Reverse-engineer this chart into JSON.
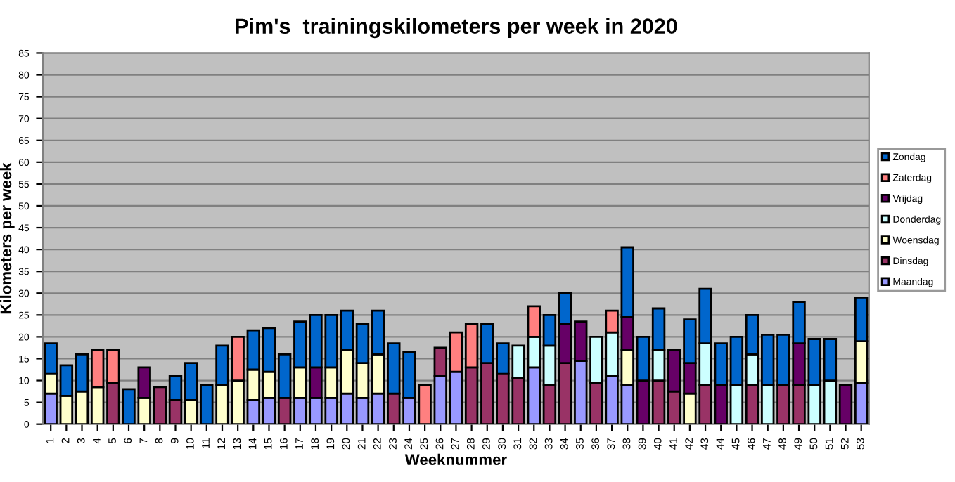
{
  "chart_data": {
    "type": "bar",
    "stacked": true,
    "title": "Pim's  trainingskilometers per week in 2020",
    "xlabel": "Weeknummer",
    "ylabel": "Kilometers per week",
    "categories": [
      "1",
      "2",
      "3",
      "4",
      "5",
      "6",
      "7",
      "8",
      "9",
      "10",
      "11",
      "12",
      "13",
      "14",
      "15",
      "16",
      "17",
      "18",
      "19",
      "20",
      "21",
      "22",
      "23",
      "24",
      "25",
      "26",
      "27",
      "28",
      "29",
      "30",
      "31",
      "32",
      "33",
      "34",
      "35",
      "36",
      "37",
      "38",
      "39",
      "40",
      "41",
      "42",
      "43",
      "44",
      "45",
      "46",
      "47",
      "48",
      "49",
      "50",
      "51",
      "52",
      "53"
    ],
    "series": [
      {
        "name": "Maandag",
        "color": "#9999ff",
        "values": [
          7,
          null,
          null,
          null,
          null,
          null,
          null,
          null,
          null,
          null,
          null,
          null,
          null,
          5.5,
          6,
          null,
          6,
          6,
          6,
          7,
          6,
          7,
          null,
          6,
          null,
          11,
          12,
          null,
          null,
          null,
          null,
          13,
          null,
          null,
          14.5,
          null,
          11,
          9,
          null,
          null,
          null,
          null,
          null,
          null,
          null,
          null,
          null,
          null,
          null,
          null,
          null,
          null,
          9.5
        ]
      },
      {
        "name": "Dinsdag",
        "color": "#993366",
        "values": [
          null,
          null,
          null,
          null,
          9.5,
          null,
          null,
          8.5,
          5.5,
          null,
          null,
          null,
          null,
          null,
          null,
          6,
          null,
          null,
          null,
          null,
          null,
          null,
          7,
          null,
          null,
          6.5,
          null,
          13,
          14,
          11.5,
          10.5,
          null,
          9,
          14,
          null,
          9.5,
          null,
          null,
          null,
          10,
          7.5,
          null,
          9,
          null,
          null,
          9,
          null,
          9,
          9,
          null,
          null,
          null,
          null
        ]
      },
      {
        "name": "Woensdag",
        "color": "#ffffcc",
        "values": [
          4.5,
          6.5,
          7.5,
          8.5,
          null,
          null,
          6,
          null,
          null,
          5.5,
          null,
          9,
          10,
          7,
          6,
          null,
          7,
          null,
          7,
          10,
          8,
          9,
          null,
          null,
          null,
          null,
          null,
          null,
          null,
          null,
          null,
          null,
          null,
          null,
          null,
          null,
          null,
          8,
          null,
          null,
          null,
          7,
          null,
          null,
          null,
          null,
          null,
          null,
          null,
          null,
          null,
          null,
          9.5
        ]
      },
      {
        "name": "Donderdag",
        "color": "#ccffff",
        "values": [
          null,
          null,
          null,
          null,
          null,
          null,
          null,
          null,
          null,
          null,
          null,
          null,
          null,
          null,
          null,
          null,
          null,
          null,
          null,
          null,
          null,
          null,
          null,
          null,
          null,
          null,
          null,
          null,
          null,
          null,
          7.5,
          7,
          9,
          null,
          null,
          10.5,
          10,
          null,
          null,
          7,
          null,
          null,
          9.5,
          null,
          9,
          7,
          9,
          null,
          null,
          9,
          10,
          null,
          null
        ]
      },
      {
        "name": "Vrijdag",
        "color": "#660066",
        "values": [
          null,
          null,
          null,
          null,
          null,
          null,
          7,
          null,
          null,
          null,
          null,
          null,
          null,
          null,
          null,
          null,
          null,
          7,
          null,
          null,
          null,
          null,
          null,
          null,
          null,
          null,
          null,
          null,
          null,
          null,
          null,
          null,
          null,
          9,
          9,
          null,
          null,
          7.5,
          10,
          null,
          9.5,
          7,
          null,
          9,
          null,
          null,
          null,
          null,
          9.5,
          null,
          null,
          9,
          null
        ]
      },
      {
        "name": "Zaterdag",
        "color": "#ff8080",
        "values": [
          null,
          null,
          null,
          8.5,
          7.5,
          null,
          null,
          null,
          null,
          null,
          null,
          null,
          10,
          null,
          null,
          null,
          null,
          null,
          null,
          null,
          null,
          null,
          null,
          null,
          9,
          null,
          9,
          10,
          null,
          null,
          null,
          7,
          null,
          null,
          null,
          null,
          5,
          null,
          null,
          null,
          null,
          null,
          null,
          null,
          null,
          null,
          null,
          null,
          null,
          null,
          null,
          null,
          null
        ]
      },
      {
        "name": "Zondag",
        "color": "#0066cc",
        "values": [
          7,
          7,
          8.5,
          null,
          null,
          8,
          null,
          null,
          5.5,
          8.5,
          9,
          9,
          null,
          9,
          10,
          10,
          10.5,
          12,
          12,
          9,
          9,
          10,
          11.5,
          10.5,
          null,
          null,
          null,
          null,
          9,
          7,
          null,
          null,
          7,
          7,
          null,
          null,
          null,
          16,
          10,
          9.5,
          null,
          10,
          12.5,
          9.5,
          11,
          9,
          11.5,
          11.5,
          9.5,
          10.5,
          9.5,
          null,
          10
        ]
      }
    ],
    "ylim": [
      0,
      85
    ],
    "yticks": [
      0,
      5,
      10,
      15,
      20,
      25,
      30,
      35,
      40,
      45,
      50,
      55,
      60,
      65,
      70,
      75,
      80,
      85
    ],
    "grid": "y",
    "legend": "right"
  }
}
